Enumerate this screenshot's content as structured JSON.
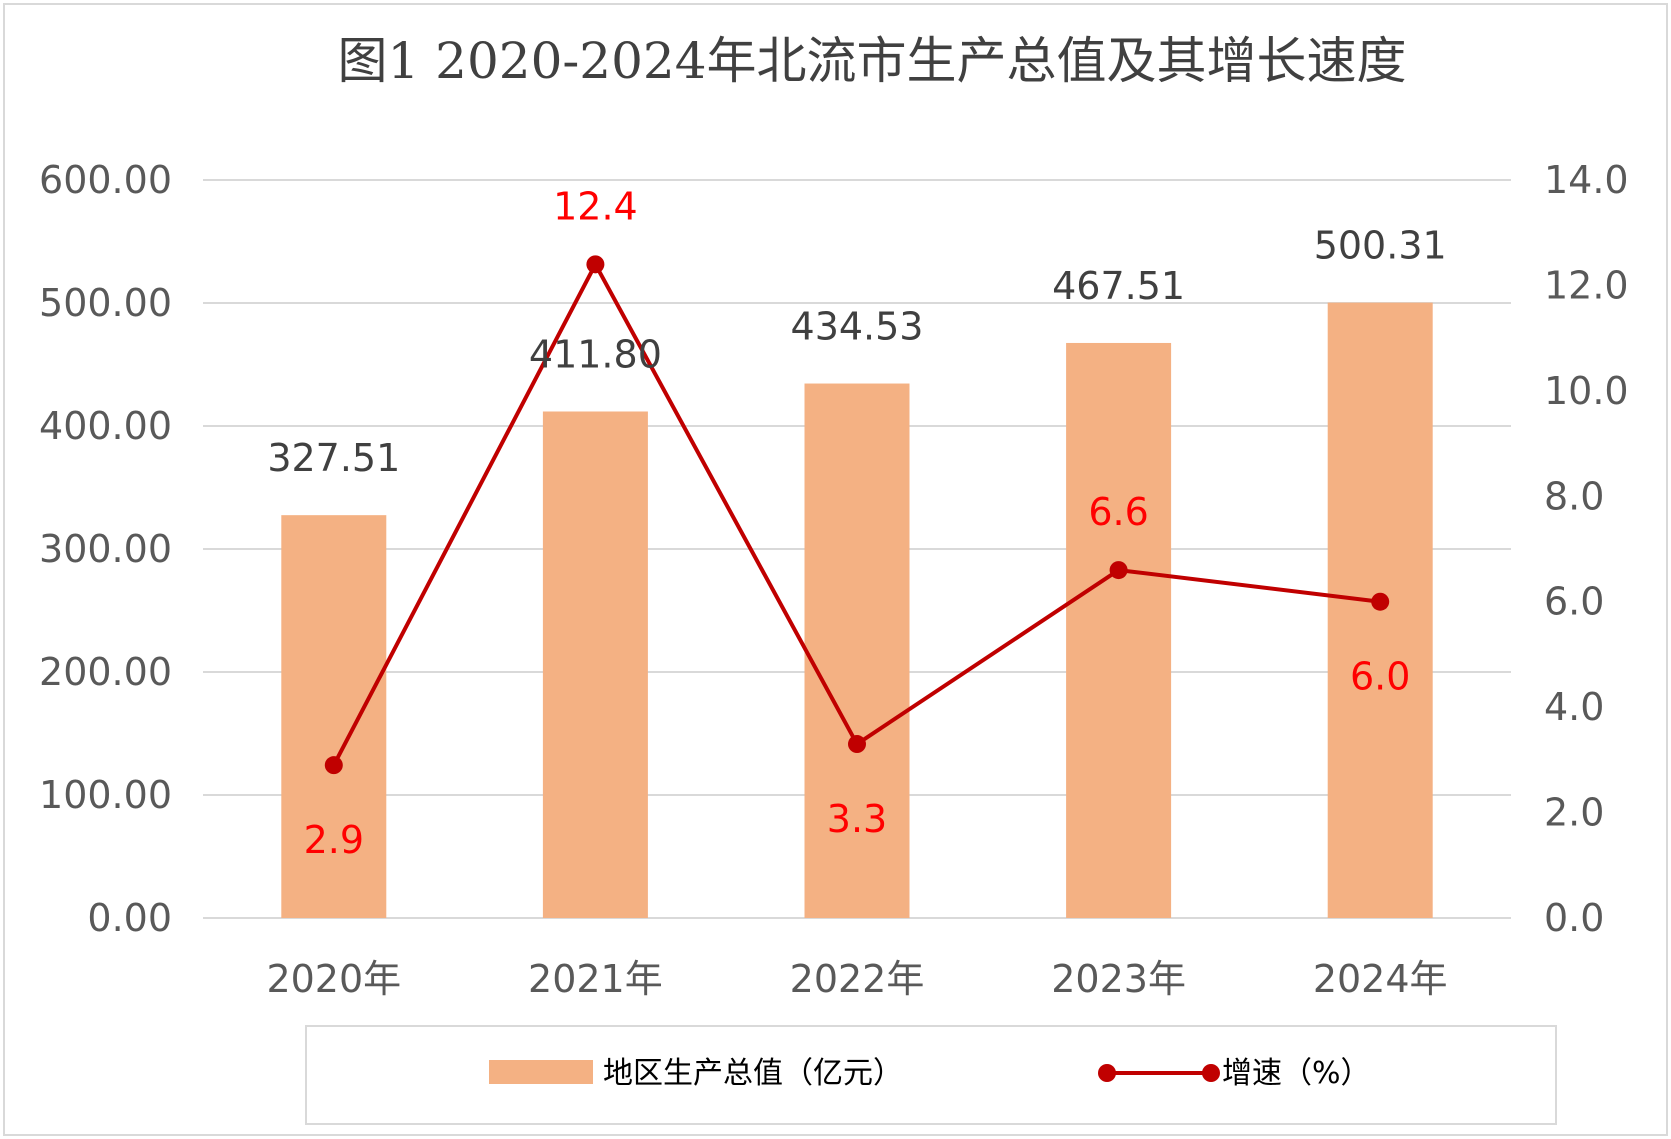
{
  "chart_data": {
    "type": "bar+line",
    "title": "图1 2020-2024年北流市生产总值及其增长速度",
    "categories": [
      "2020年",
      "2021年",
      "2022年",
      "2023年",
      "2024年"
    ],
    "series": [
      {
        "name": "地区生产总值（亿元）",
        "type": "bar",
        "axis": "left",
        "values": [
          327.51,
          411.8,
          434.53,
          467.51,
          500.31
        ],
        "labels": [
          "327.51",
          "411.80",
          "434.53",
          "467.51",
          "500.31"
        ],
        "color": "#f4b183"
      },
      {
        "name": "增速（%）",
        "type": "line",
        "axis": "right",
        "values": [
          2.9,
          12.4,
          3.3,
          6.6,
          6.0
        ],
        "labels": [
          "2.9",
          "12.4",
          "3.3",
          "6.6",
          "6.0"
        ],
        "color": "#c00000",
        "label_color": "#ff0000"
      }
    ],
    "left_axis": {
      "min": 0,
      "max": 600,
      "ticks": [
        "0.00",
        "100.00",
        "200.00",
        "300.00",
        "400.00",
        "500.00",
        "600.00"
      ],
      "tick_values": [
        0,
        100,
        200,
        300,
        400,
        500,
        600
      ]
    },
    "right_axis": {
      "min": 0,
      "max": 14,
      "ticks": [
        "0.0",
        "2.0",
        "4.0",
        "6.0",
        "8.0",
        "10.0",
        "12.0",
        "14.0"
      ],
      "tick_values": [
        0,
        2,
        4,
        6,
        8,
        10,
        12,
        14
      ]
    },
    "grid": true,
    "legend_position": "bottom",
    "colors": {
      "gridline": "#d9d9d9",
      "border": "#d9d9d9"
    }
  }
}
